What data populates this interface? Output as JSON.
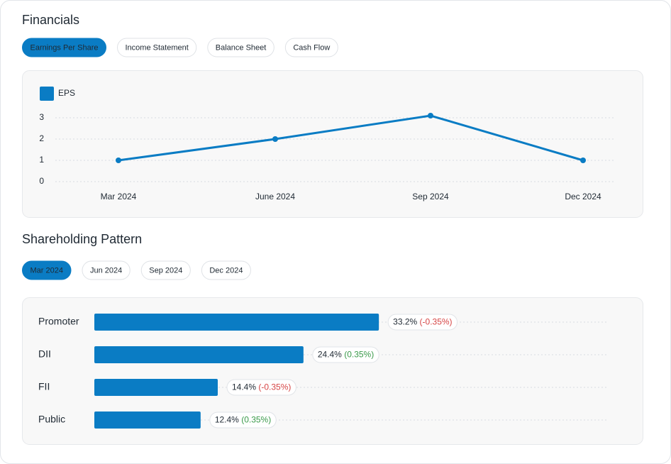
{
  "financials": {
    "title": "Financials",
    "tabs": [
      "Earnings Per Share",
      "Income Statement",
      "Balance Sheet",
      "Cash Flow"
    ],
    "active": 0
  },
  "shareholding": {
    "title": "Shareholding Pattern",
    "tabs": [
      "Mar 2024",
      "Jun 2024",
      "Sep 2024",
      "Dec 2024"
    ],
    "active": 0
  },
  "chart_data": [
    {
      "type": "line",
      "categories": [
        "Mar 2024",
        "June 2024",
        "Sep 2024",
        "Dec 2024"
      ],
      "series": [
        {
          "name": "EPS",
          "color": "#0a7cc4",
          "values": [
            1,
            2,
            3.1,
            1
          ]
        }
      ],
      "ylim": [
        0,
        3
      ],
      "yticks": [
        0,
        1,
        2,
        3
      ],
      "grid": true,
      "legend": "top-left"
    },
    {
      "type": "hbar",
      "categories": [
        "Promoter",
        "DII",
        "FII",
        "Public"
      ],
      "values": [
        33.2,
        24.4,
        14.4,
        12.4
      ],
      "value_labels": [
        "33.2%",
        "24.4%",
        "14.4%",
        "12.4%"
      ],
      "changes": [
        -0.35,
        0.35,
        -0.35,
        0.35
      ],
      "change_labels": [
        "(-0.35%)",
        "(0.35%)",
        "(-0.35%)",
        "(0.35%)"
      ],
      "color": "#0a7cc4",
      "xlim": [
        0,
        60
      ],
      "grid": true
    }
  ]
}
